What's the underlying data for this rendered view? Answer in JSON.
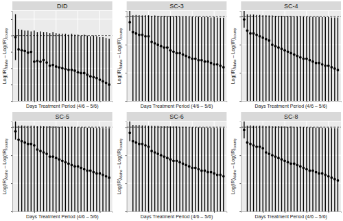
{
  "chart_data": [
    {
      "type": "scatter",
      "title": "DID",
      "ylabel": [
        "Log(IR)",
        "Idaho",
        " – Log(IR)",
        "county"
      ],
      "xlabel": "Days Treatment Period (4/6 – 5/6)",
      "color": "#000000",
      "grid": true,
      "tick_labels": false,
      "hline": 0,
      "xlim": [
        0,
        32
      ],
      "xticks": [
        7,
        14,
        21,
        28
      ],
      "ylim": [
        -4,
        1.5
      ],
      "yticks": [
        -4,
        -3,
        -2,
        -1,
        0,
        1
      ],
      "x": [
        1,
        2,
        3,
        4,
        5,
        6,
        7,
        8,
        9,
        10,
        11,
        12,
        13,
        14,
        15,
        16,
        17,
        18,
        19,
        20,
        21,
        22,
        23,
        24,
        25,
        26,
        27,
        28,
        29,
        30,
        31
      ],
      "values": [
        -0.1,
        -0.85,
        -0.9,
        -0.95,
        -1.05,
        -1.0,
        -1.6,
        -1.55,
        -1.6,
        -1.5,
        -1.65,
        -1.85,
        -1.8,
        -1.9,
        -1.95,
        -2.0,
        -2.05,
        -2.1,
        -2.1,
        -2.15,
        -2.25,
        -2.3,
        -2.3,
        -2.4,
        -2.5,
        -2.55,
        -2.6,
        -2.7,
        -2.8,
        -2.9,
        -3.0
      ],
      "ci_upper": [
        1.3,
        0.4,
        0.35,
        0.3,
        0.3,
        0.25,
        0.3,
        0.2,
        0.25,
        0.2,
        0.2,
        0.15,
        0.2,
        0.15,
        0.1,
        0.1,
        0.1,
        0.05,
        0.1,
        0.05,
        0.05,
        0.0,
        0.05,
        0.0,
        -0.05,
        0.0,
        -0.05,
        -0.1,
        -0.1,
        -0.15,
        -0.2
      ],
      "ci_lower": [
        -1.5,
        -4.6,
        -4.7,
        -4.8,
        -4.9,
        -4.9,
        -5.2,
        -5.2,
        -5.3,
        -5.2,
        -5.3,
        -5.5,
        -5.5,
        -5.6,
        -5.6,
        -5.7,
        -5.7,
        -5.8,
        -5.8,
        -5.9,
        -6.0,
        -6.0,
        -6.1,
        -6.1,
        -6.2,
        -6.3,
        -6.3,
        -6.4,
        -6.5,
        -6.5,
        -6.6
      ]
    },
    {
      "type": "scatter",
      "title": "SC-3",
      "ylabel": [
        "Log(IR)",
        "Idaho",
        " – Log(IR)",
        "county"
      ],
      "xlabel": "Days Treatment Period (4/6 – 5/6)",
      "color": "#000000",
      "grid": true,
      "tick_labels": false,
      "hline": 0,
      "xlim": [
        0,
        32
      ],
      "xticks": [
        7,
        14,
        21,
        28
      ],
      "ylim": [
        -3,
        0.2
      ],
      "yticks": [
        -3,
        -2,
        -1,
        0
      ],
      "x": [
        1,
        2,
        3,
        4,
        5,
        6,
        7,
        8,
        9,
        10,
        11,
        12,
        13,
        14,
        15,
        16,
        17,
        18,
        19,
        20,
        21,
        22,
        23,
        24,
        25,
        26,
        27,
        28,
        29,
        30,
        31
      ],
      "values": [
        -0.2,
        -0.55,
        -0.6,
        -0.65,
        -0.65,
        -0.7,
        -0.7,
        -0.9,
        -0.95,
        -1.0,
        -1.05,
        -1.1,
        -1.1,
        -1.2,
        -1.25,
        -1.3,
        -1.3,
        -1.35,
        -1.4,
        -1.45,
        -1.5,
        -1.5,
        -1.55,
        -1.55,
        -1.6,
        -1.6,
        -1.65,
        -1.7,
        -1.7,
        -1.75,
        -1.8
      ],
      "ci_upper": [
        0.4,
        0.05,
        0.06,
        0.05,
        0.04,
        0.05,
        0.05,
        0.03,
        0.04,
        0.03,
        0.02,
        0.03,
        0.02,
        0.02,
        0.01,
        0.02,
        0.01,
        0.0,
        0.01,
        0.0,
        0.0,
        -0.01,
        0.0,
        -0.02,
        -0.01,
        -0.02,
        -0.03,
        -0.02,
        -0.03,
        -0.04,
        -0.04
      ],
      "ci_lower": [
        -0.5,
        -3.6,
        -3.65,
        -3.7,
        -3.7,
        -3.75,
        -3.8,
        -3.9,
        -3.95,
        -4.0,
        -4.05,
        -4.1,
        -4.1,
        -4.2,
        -4.25,
        -4.3,
        -4.3,
        -4.35,
        -4.4,
        -4.45,
        -4.5,
        -4.5,
        -4.55,
        -4.55,
        -4.6,
        -4.6,
        -4.65,
        -4.7,
        -4.7,
        -4.75,
        -4.8
      ]
    },
    {
      "type": "scatter",
      "title": "SC-4",
      "ylabel": [
        "Log(IR)",
        "Idaho",
        " – Log(IR)",
        "county"
      ],
      "xlabel": "Days Treatment Period (4/6 – 5/6)",
      "color": "#000000",
      "grid": true,
      "tick_labels": false,
      "hline": 0,
      "xlim": [
        0,
        32
      ],
      "xticks": [
        7,
        14,
        21,
        28
      ],
      "ylim": [
        -3,
        0.2
      ],
      "yticks": [
        -3,
        -2,
        -1,
        0
      ],
      "x": [
        1,
        2,
        3,
        4,
        5,
        6,
        7,
        8,
        9,
        10,
        11,
        12,
        13,
        14,
        15,
        16,
        17,
        18,
        19,
        20,
        21,
        22,
        23,
        24,
        25,
        26,
        27,
        28,
        29,
        30,
        31
      ],
      "values": [
        -0.1,
        -0.5,
        -0.6,
        -0.6,
        -0.65,
        -0.7,
        -0.75,
        -0.8,
        -0.85,
        -1.0,
        -1.05,
        -1.1,
        -1.15,
        -1.2,
        -1.25,
        -1.3,
        -1.35,
        -1.4,
        -1.45,
        -1.5,
        -1.5,
        -1.55,
        -1.6,
        -1.65,
        -1.65,
        -1.7,
        -1.75,
        -1.75,
        -1.8,
        -1.85,
        -1.9
      ],
      "ci_upper": [
        0.35,
        0.08,
        0.07,
        0.07,
        0.06,
        0.06,
        0.05,
        0.05,
        0.04,
        0.04,
        0.03,
        0.03,
        0.03,
        0.02,
        0.02,
        0.02,
        0.01,
        0.01,
        0.01,
        0.0,
        0.0,
        0.0,
        -0.01,
        -0.01,
        -0.01,
        -0.02,
        -0.02,
        -0.02,
        -0.03,
        -0.03,
        -0.03
      ],
      "ci_lower": [
        -0.4,
        -3.5,
        -3.6,
        -3.6,
        -3.65,
        -3.7,
        -3.75,
        -3.8,
        -3.85,
        -4.0,
        -4.05,
        -4.1,
        -4.15,
        -4.2,
        -4.25,
        -4.3,
        -4.35,
        -4.4,
        -4.45,
        -4.5,
        -4.5,
        -4.55,
        -4.6,
        -4.65,
        -4.65,
        -4.7,
        -4.75,
        -4.75,
        -4.8,
        -4.85,
        -4.9
      ]
    },
    {
      "type": "scatter",
      "title": "SC-5",
      "ylabel": [
        "Log(IR)",
        "Idaho",
        " – Log(IR)",
        "county"
      ],
      "xlabel": "Days Treatment Period (4/6 – 5/6)",
      "color": "#000000",
      "grid": true,
      "tick_labels": false,
      "hline": 0,
      "xlim": [
        0,
        32
      ],
      "xticks": [
        7,
        14,
        21,
        28
      ],
      "ylim": [
        -3,
        0.2
      ],
      "yticks": [
        -3,
        -2,
        -1,
        0
      ],
      "x": [
        1,
        2,
        3,
        4,
        5,
        6,
        7,
        8,
        9,
        10,
        11,
        12,
        13,
        14,
        15,
        16,
        17,
        18,
        19,
        20,
        21,
        22,
        23,
        24,
        25,
        26,
        27,
        28,
        29,
        30,
        31
      ],
      "values": [
        -0.15,
        -0.45,
        -0.5,
        -0.55,
        -0.6,
        -0.6,
        -0.65,
        -0.8,
        -0.85,
        -0.9,
        -0.95,
        -1.05,
        -1.05,
        -1.1,
        -1.15,
        -1.2,
        -1.25,
        -1.3,
        -1.35,
        -1.4,
        -1.4,
        -1.45,
        -1.5,
        -1.55,
        -1.55,
        -1.6,
        -1.65,
        -1.65,
        -1.7,
        -1.75,
        -1.8
      ],
      "ci_upper": [
        0.4,
        0.05,
        0.06,
        0.05,
        0.04,
        0.05,
        0.05,
        0.03,
        0.04,
        0.03,
        0.02,
        0.03,
        0.02,
        0.02,
        0.01,
        0.02,
        0.01,
        0.0,
        0.01,
        0.0,
        0.0,
        -0.01,
        0.0,
        -0.02,
        -0.01,
        -0.02,
        -0.03,
        -0.02,
        -0.03,
        -0.04,
        -0.04
      ],
      "ci_lower": [
        -0.45,
        -3.45,
        -3.5,
        -3.55,
        -3.6,
        -3.6,
        -3.65,
        -3.8,
        -3.85,
        -3.9,
        -3.95,
        -4.05,
        -4.05,
        -4.1,
        -4.15,
        -4.2,
        -4.25,
        -4.3,
        -4.35,
        -4.4,
        -4.4,
        -4.45,
        -4.5,
        -4.55,
        -4.55,
        -4.6,
        -4.65,
        -4.65,
        -4.7,
        -4.75,
        -4.8
      ]
    },
    {
      "type": "scatter",
      "title": "SC-6",
      "ylabel": [
        "Log(IR)",
        "Idaho",
        " – Log(IR)",
        "county"
      ],
      "xlabel": "Days Treatment Period (4/6 – 5/6)",
      "color": "#000000",
      "grid": true,
      "tick_labels": false,
      "hline": 0,
      "xlim": [
        0,
        32
      ],
      "xticks": [
        7,
        14,
        21,
        28
      ],
      "ylim": [
        -3,
        0.2
      ],
      "yticks": [
        -3,
        -2,
        -1,
        0
      ],
      "x": [
        1,
        2,
        3,
        4,
        5,
        6,
        7,
        8,
        9,
        10,
        11,
        12,
        13,
        14,
        15,
        16,
        17,
        18,
        19,
        20,
        21,
        22,
        23,
        24,
        25,
        26,
        27,
        28,
        29,
        30,
        31
      ],
      "values": [
        -0.2,
        -0.5,
        -0.55,
        -0.6,
        -0.6,
        -0.65,
        -0.7,
        -0.85,
        -0.9,
        -0.95,
        -1.0,
        -1.05,
        -1.1,
        -1.15,
        -1.2,
        -1.2,
        -1.25,
        -1.3,
        -1.35,
        -1.4,
        -1.45,
        -1.45,
        -1.5,
        -1.55,
        -1.55,
        -1.6,
        -1.6,
        -1.65,
        -1.7,
        -1.7,
        -1.75
      ],
      "ci_upper": [
        0.35,
        0.08,
        0.07,
        0.07,
        0.06,
        0.06,
        0.05,
        0.05,
        0.04,
        0.04,
        0.03,
        0.03,
        0.03,
        0.02,
        0.02,
        0.02,
        0.01,
        0.01,
        0.01,
        0.0,
        0.0,
        0.0,
        -0.01,
        -0.01,
        -0.01,
        -0.02,
        -0.02,
        -0.02,
        -0.03,
        -0.03,
        -0.03
      ],
      "ci_lower": [
        -0.5,
        -3.5,
        -3.55,
        -3.6,
        -3.6,
        -3.65,
        -3.7,
        -3.85,
        -3.9,
        -3.95,
        -4.0,
        -4.05,
        -4.1,
        -4.15,
        -4.2,
        -4.2,
        -4.25,
        -4.3,
        -4.35,
        -4.4,
        -4.45,
        -4.45,
        -4.5,
        -4.55,
        -4.55,
        -4.6,
        -4.6,
        -4.65,
        -4.7,
        -4.7,
        -4.75
      ]
    },
    {
      "type": "scatter",
      "title": "SC-8",
      "ylabel": [
        "Log(IR)",
        "Idaho",
        " – Log(IR)",
        "county"
      ],
      "xlabel": "Days Treatment Period (4/6 – 5/6)",
      "color": "#000000",
      "grid": true,
      "tick_labels": false,
      "hline": 0,
      "xlim": [
        0,
        32
      ],
      "xticks": [
        7,
        14,
        21,
        28
      ],
      "ylim": [
        -3,
        0.2
      ],
      "yticks": [
        -3,
        -2,
        -1,
        0
      ],
      "x": [
        1,
        2,
        3,
        4,
        5,
        6,
        7,
        8,
        9,
        10,
        11,
        12,
        13,
        14,
        15,
        16,
        17,
        18,
        19,
        20,
        21,
        22,
        23,
        24,
        25,
        26,
        27,
        28,
        29,
        30,
        31
      ],
      "values": [
        -0.1,
        -0.55,
        -0.6,
        -0.65,
        -0.7,
        -0.7,
        -0.75,
        -0.9,
        -0.95,
        -1.0,
        -1.05,
        -1.1,
        -1.15,
        -1.2,
        -1.25,
        -1.3,
        -1.3,
        -1.35,
        -1.4,
        -1.45,
        -1.5,
        -1.55,
        -1.55,
        -1.6,
        -1.65,
        -1.65,
        -1.7,
        -1.75,
        -1.8,
        -1.85,
        -1.9
      ],
      "ci_upper": [
        0.4,
        0.05,
        0.06,
        0.05,
        0.04,
        0.05,
        0.05,
        0.03,
        0.04,
        0.03,
        0.02,
        0.03,
        0.02,
        0.02,
        0.01,
        0.02,
        0.01,
        0.0,
        0.01,
        0.0,
        0.0,
        -0.01,
        0.0,
        -0.02,
        -0.01,
        -0.02,
        -0.03,
        -0.02,
        -0.03,
        -0.04,
        -0.04
      ],
      "ci_lower": [
        -0.4,
        -3.55,
        -3.6,
        -3.65,
        -3.7,
        -3.7,
        -3.75,
        -3.9,
        -3.95,
        -4.0,
        -4.05,
        -4.1,
        -4.15,
        -4.2,
        -4.25,
        -4.3,
        -4.3,
        -4.35,
        -4.4,
        -4.45,
        -4.5,
        -4.55,
        -4.55,
        -4.6,
        -4.65,
        -4.65,
        -4.7,
        -4.75,
        -4.8,
        -4.85,
        -4.9
      ]
    }
  ]
}
